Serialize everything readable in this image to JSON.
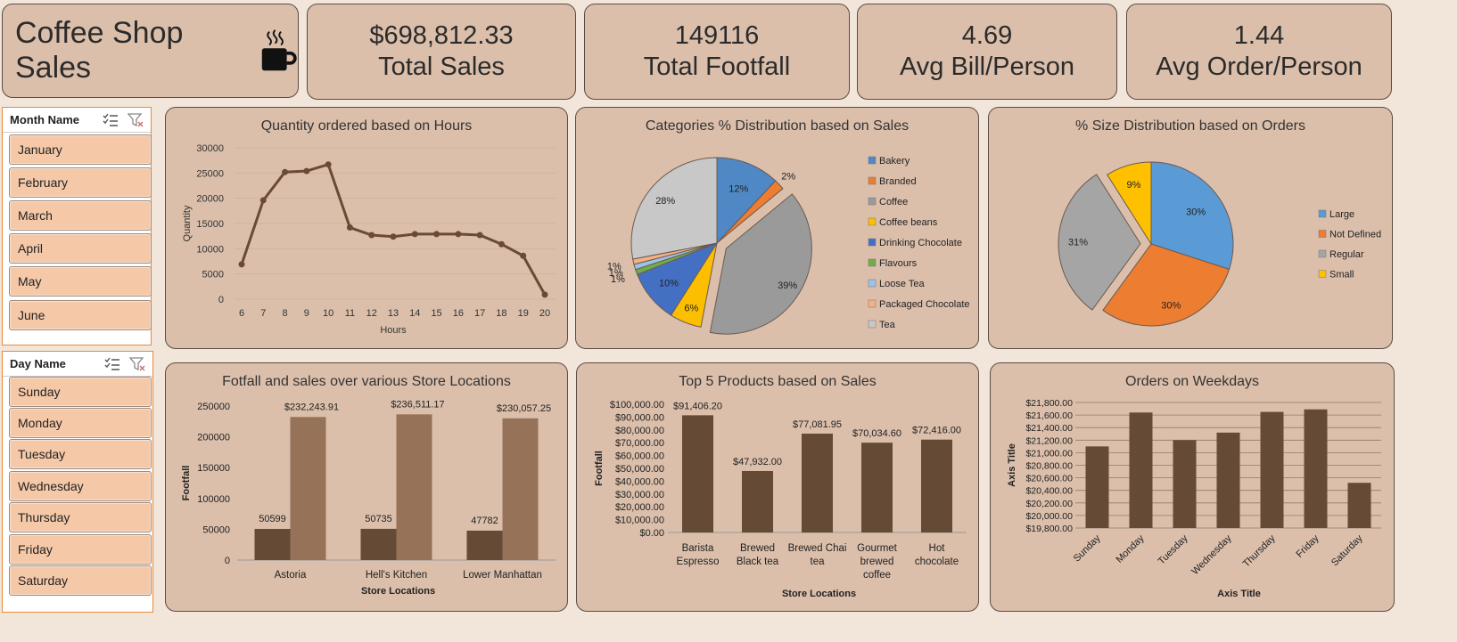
{
  "header": {
    "title": "Coffee Shop Sales"
  },
  "kpis": [
    {
      "value": "$698,812.33",
      "label": "Total Sales"
    },
    {
      "value": "149116",
      "label": "Total Footfall"
    },
    {
      "value": "4.69",
      "label": "Avg Bill/Person"
    },
    {
      "value": "1.44",
      "label": "Avg Order/Person"
    }
  ],
  "slicers": {
    "month": {
      "title": "Month Name",
      "items": [
        "January",
        "February",
        "March",
        "April",
        "May",
        "June"
      ]
    },
    "day": {
      "title": "Day Name",
      "items": [
        "Sunday",
        "Monday",
        "Tuesday",
        "Wednesday",
        "Thursday",
        "Friday",
        "Saturday"
      ]
    }
  },
  "colors": {
    "panel": "#dbbfab",
    "line": "#6b4a35",
    "bar_dark": "#654a35",
    "bar_light": "#967259",
    "slicer_item": "#f5c8a8"
  },
  "chart_data": [
    {
      "id": "hours",
      "type": "line",
      "title": "Quantity ordered based on Hours",
      "xlabel": "Hours",
      "ylabel": "Quantity",
      "x": [
        6,
        7,
        8,
        9,
        10,
        11,
        12,
        13,
        14,
        15,
        16,
        17,
        18,
        19,
        20
      ],
      "y": [
        6900,
        19600,
        25200,
        25400,
        26700,
        14200,
        12700,
        12400,
        12900,
        12900,
        12900,
        12700,
        10900,
        8600,
        900
      ],
      "yticks": [
        "0",
        "5000",
        "10000",
        "15000",
        "20000",
        "25000",
        "30000"
      ],
      "ylim": [
        0,
        30000
      ],
      "grid": true
    },
    {
      "id": "categories",
      "type": "pie",
      "title": "Categories % Distribution based on Sales",
      "slices": [
        {
          "name": "Bakery",
          "value": 12,
          "label": "12%",
          "color": "#5088c6"
        },
        {
          "name": "Branded",
          "value": 2,
          "label": "2%",
          "color": "#ec7d31"
        },
        {
          "name": "Coffee",
          "value": 39,
          "label": "39%",
          "color": "#9a9a9a"
        },
        {
          "name": "Coffee beans",
          "value": 6,
          "label": "6%",
          "color": "#fcbf00"
        },
        {
          "name": "Drinking Chocolate",
          "value": 10,
          "label": "10%",
          "color": "#4470c4"
        },
        {
          "name": "Flavours",
          "value": 1,
          "label": "1%",
          "color": "#70ad47"
        },
        {
          "name": "Loose Tea",
          "value": 1,
          "label": "1%",
          "color": "#9cc2e5"
        },
        {
          "name": "Packaged Chocolate",
          "value": 1,
          "label": "1%",
          "color": "#f4b183"
        },
        {
          "name": "Tea",
          "value": 28,
          "label": "28%",
          "color": "#c8c8c8"
        }
      ],
      "legend": "right"
    },
    {
      "id": "sizes",
      "type": "pie",
      "title": "% Size Distribution based on Orders",
      "slices": [
        {
          "name": "Large",
          "value": 30,
          "label": "30%",
          "color": "#5b9bd5"
        },
        {
          "name": "Not Defined",
          "value": 30,
          "label": "30%",
          "color": "#ed7d31"
        },
        {
          "name": "Regular",
          "value": 31,
          "label": "31%",
          "color": "#a5a5a5"
        },
        {
          "name": "Small",
          "value": 9,
          "label": "9%",
          "color": "#ffc000"
        }
      ],
      "legend": "right"
    },
    {
      "id": "stores",
      "type": "bar",
      "title": "Fotfall and sales over various Store Locations",
      "xlabel": "Store Locations",
      "ylabel": "Footfall",
      "categories": [
        "Astoria",
        "Hell's Kitchen",
        "Lower Manhattan"
      ],
      "series": [
        {
          "values": [
            50599,
            50735,
            47782
          ],
          "labels": [
            "50599",
            "50735",
            "47782"
          ]
        },
        {
          "values": [
            232243.91,
            236511.17,
            230057.25
          ],
          "labels": [
            "$232,243.91",
            "$236,511.17",
            "$230,057.25"
          ]
        }
      ],
      "yticks": [
        "0",
        "50000",
        "100000",
        "150000",
        "200000",
        "250000"
      ],
      "ylim": [
        0,
        250000
      ]
    },
    {
      "id": "products",
      "type": "bar",
      "title": "Top 5 Products based on Sales",
      "xlabel": "Store Locations",
      "ylabel": "Footfall",
      "categories": [
        [
          "Barista",
          "Espresso"
        ],
        [
          "Brewed",
          "Black tea"
        ],
        [
          "Brewed Chai",
          "tea"
        ],
        [
          "Gourmet",
          "brewed",
          "coffee"
        ],
        [
          "Hot",
          "chocolate"
        ]
      ],
      "values": [
        91406.2,
        47932,
        77081.95,
        70034.6,
        72416
      ],
      "labels": [
        "$91,406.20",
        "$47,932.00",
        "$77,081.95",
        "$70,034.60",
        "$72,416.00"
      ],
      "yticks": [
        "$0.00",
        "$10,000.00",
        "$20,000.00",
        "$30,000.00",
        "$40,000.00",
        "$50,000.00",
        "$60,000.00",
        "$70,000.00",
        "$80,000.00",
        "$90,000.00",
        "$100,000.00"
      ],
      "ylim": [
        0,
        100000
      ]
    },
    {
      "id": "weekdays",
      "type": "bar",
      "title": "Orders on Weekdays",
      "xlabel": "Axis Title",
      "ylabel": "Axis Title",
      "categories": [
        "Sunday",
        "Monday",
        "Tuesday",
        "Wednesday",
        "Thursday",
        "Friday",
        "Saturday"
      ],
      "values": [
        21100,
        21640,
        21200,
        21320,
        21650,
        21690,
        20520
      ],
      "yticks": [
        "$19,800.00",
        "$20,000.00",
        "$20,200.00",
        "$20,400.00",
        "$20,600.00",
        "$20,800.00",
        "$21,000.00",
        "$21,200.00",
        "$21,400.00",
        "$21,600.00",
        "$21,800.00"
      ],
      "ylim": [
        19800,
        21800
      ],
      "grid": true
    }
  ]
}
